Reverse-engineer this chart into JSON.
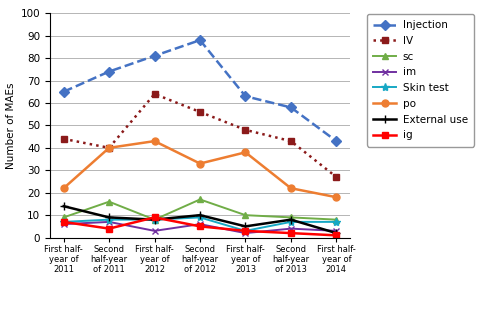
{
  "x_labels": [
    "First half-\nyear of\n2011",
    "Second\nhalf-year\nof 2011",
    "First half-\nyear of\n2012",
    "Second\nhalf-year\nof 2012",
    "First half-\nyear of\n2013",
    "Second\nhalf-year\nof 2013",
    "First half-\nyear of\n2014"
  ],
  "series": {
    "Injection": [
      65,
      74,
      81,
      88,
      63,
      58,
      43
    ],
    "IV": [
      44,
      40,
      64,
      56,
      48,
      43,
      27
    ],
    "sc": [
      9,
      16,
      8,
      17,
      10,
      9,
      8
    ],
    "im": [
      6,
      7,
      3,
      6,
      2,
      4,
      3
    ],
    "Skin test": [
      7,
      8,
      8,
      9,
      3,
      7,
      7
    ],
    "po": [
      22,
      40,
      43,
      33,
      38,
      22,
      18
    ],
    "External use": [
      14,
      9,
      8,
      10,
      5,
      8,
      2
    ],
    "ig": [
      7,
      4,
      9,
      5,
      3,
      2,
      1
    ]
  },
  "colors": {
    "Injection": "#4472C4",
    "IV": "#8B1A1A",
    "sc": "#70AD47",
    "im": "#7030A0",
    "Skin test": "#17A8C4",
    "po": "#ED7D31",
    "External use": "#000000",
    "ig": "#FF0000"
  },
  "linestyles": {
    "Injection": "--",
    "IV": ":",
    "sc": "-",
    "im": "-",
    "Skin test": "-",
    "po": "-",
    "External use": "-",
    "ig": "-"
  },
  "markers": {
    "Injection": "D",
    "IV": "s",
    "sc": "^",
    "im": "x",
    "Skin test": "*",
    "po": "o",
    "External use": "+",
    "ig": "s"
  },
  "marker_sizes": {
    "Injection": 5,
    "IV": 5,
    "sc": 5,
    "im": 5,
    "Skin test": 6,
    "po": 5,
    "External use": 6,
    "ig": 5
  },
  "linewidths": {
    "Injection": 1.8,
    "IV": 1.8,
    "sc": 1.4,
    "im": 1.4,
    "Skin test": 1.4,
    "po": 1.8,
    "External use": 1.8,
    "ig": 1.8
  },
  "ylabel": "Number of MAEs",
  "ylim": [
    0,
    100
  ],
  "yticks": [
    0,
    10,
    20,
    30,
    40,
    50,
    60,
    70,
    80,
    90,
    100
  ]
}
